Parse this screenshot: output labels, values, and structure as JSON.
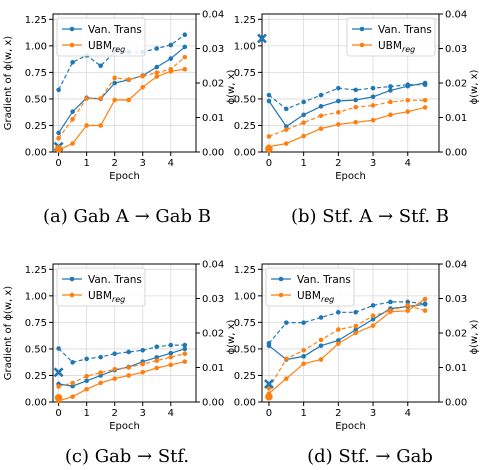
{
  "figure": {
    "captions": [
      "(a) Gab A → Gab B",
      "(b) Stf. A → Stf. B",
      "(c) Gab → Stf.",
      "(d) Stf. → Gab"
    ]
  },
  "colors": {
    "blue": "#1f77b4",
    "orange": "#ff7f0e"
  },
  "chart_data": [
    {
      "type": "line",
      "caption": "(a) Gab A → Gab B",
      "xlabel": "Epoch",
      "ylabel": "Gradient of ϕ(w, x)",
      "ylabel_right": "ϕ(w, x)",
      "xlim": [
        -0.2,
        4.9
      ],
      "ylim": [
        0,
        1.3
      ],
      "ylim_right": [
        0,
        0.04
      ],
      "xticks": [
        "0",
        "1",
        "2",
        "3",
        "4"
      ],
      "yticks": [
        "0.00",
        "0.25",
        "0.50",
        "0.75",
        "1.00",
        "1.25"
      ],
      "yticks_right": [
        "0.00",
        "0.01",
        "0.02",
        "0.03",
        "0.04"
      ],
      "legend": {
        "position": "top-left",
        "entries": [
          "Van. Trans",
          "UBM_reg"
        ]
      },
      "x": [
        0,
        0.5,
        1,
        1.5,
        2,
        2.5,
        3,
        3.5,
        4,
        4.5
      ],
      "series": [
        {
          "name": "Van. Trans",
          "axis": "left",
          "style": "solid",
          "color": "blue",
          "values": [
            0.18,
            0.38,
            0.51,
            0.5,
            0.65,
            0.68,
            0.72,
            0.8,
            0.88,
            0.99
          ]
        },
        {
          "name": "Van. Trans",
          "axis": "right",
          "style": "dashed",
          "color": "blue",
          "values": [
            0.018,
            0.026,
            0.028,
            0.025,
            0.029,
            0.029,
            0.029,
            0.03,
            0.031,
            0.034
          ]
        },
        {
          "name": "UBM_reg",
          "axis": "left",
          "style": "solid",
          "color": "orange",
          "values": [
            0.02,
            0.08,
            0.25,
            0.25,
            0.49,
            0.49,
            0.61,
            0.71,
            0.76,
            0.78
          ]
        },
        {
          "name": "UBM_reg",
          "axis": "right",
          "style": "dashed",
          "color": "orange",
          "values": [
            0.004,
            0.0095,
            0.0155,
            0.0155,
            0.0215,
            0.021,
            0.022,
            0.023,
            0.024,
            0.0275
          ]
        }
      ],
      "markers": [
        {
          "x": 0,
          "y": 0.05,
          "shape": "x",
          "color": "blue",
          "axis": "left"
        },
        {
          "x": 0,
          "y": 0.03,
          "shape": "dot",
          "color": "orange",
          "axis": "left"
        }
      ]
    },
    {
      "type": "line",
      "caption": "(b) Stf. A → Stf. B",
      "xlabel": "Epoch",
      "ylabel": "",
      "ylabel_right": "ϕ(w, x)",
      "xlim": [
        -0.2,
        4.9
      ],
      "ylim": [
        0,
        1.3
      ],
      "ylim_right": [
        0,
        0.04
      ],
      "xticks": [
        "0",
        "1",
        "2",
        "3",
        "4"
      ],
      "yticks": [
        "0.00",
        "0.25",
        "0.50",
        "0.75",
        "1.00",
        "1.25"
      ],
      "yticks_right": [
        "0.00",
        "0.01",
        "0.02",
        "0.03",
        "0.04"
      ],
      "legend": {
        "position": "top-right",
        "entries": [
          "Van. Trans",
          "UBM_reg"
        ]
      },
      "x": [
        0,
        0.5,
        1,
        1.5,
        2,
        2.5,
        3,
        3.5,
        4,
        4.5
      ],
      "series": [
        {
          "name": "Van. Trans",
          "axis": "left",
          "style": "solid",
          "color": "blue",
          "values": [
            0.48,
            0.24,
            0.35,
            0.43,
            0.48,
            0.49,
            0.52,
            0.58,
            0.62,
            0.65
          ]
        },
        {
          "name": "Van. Trans",
          "axis": "right",
          "style": "dashed",
          "color": "blue",
          "values": [
            0.0165,
            0.0125,
            0.0145,
            0.0165,
            0.0185,
            0.018,
            0.0185,
            0.019,
            0.0195,
            0.0195
          ]
        },
        {
          "name": "UBM_reg",
          "axis": "left",
          "style": "solid",
          "color": "orange",
          "values": [
            0.05,
            0.08,
            0.15,
            0.22,
            0.26,
            0.28,
            0.3,
            0.35,
            0.38,
            0.42
          ]
        },
        {
          "name": "UBM_reg",
          "axis": "right",
          "style": "dashed",
          "color": "orange",
          "values": [
            0.0045,
            0.0065,
            0.0085,
            0.0105,
            0.0115,
            0.013,
            0.0135,
            0.0145,
            0.015,
            0.015
          ]
        }
      ],
      "markers": [
        {
          "x": -0.2,
          "y": 1.07,
          "shape": "x",
          "color": "blue",
          "axis": "left"
        },
        {
          "x": 0,
          "y": 0.03,
          "shape": "dot",
          "color": "orange",
          "axis": "left"
        }
      ]
    },
    {
      "type": "line",
      "caption": "(c) Gab → Stf.",
      "xlabel": "Epoch",
      "ylabel": "Gradient of ϕ(w, x)",
      "ylabel_right": "ϕ(w, x)",
      "xlim": [
        -0.2,
        4.9
      ],
      "ylim": [
        0,
        1.3
      ],
      "ylim_right": [
        0,
        0.04
      ],
      "xticks": [
        "0",
        "1",
        "2",
        "3",
        "4"
      ],
      "yticks": [
        "0.00",
        "0.25",
        "0.50",
        "0.75",
        "1.00",
        "1.25"
      ],
      "yticks_right": [
        "0.00",
        "0.01",
        "0.02",
        "0.03",
        "0.04"
      ],
      "legend": {
        "position": "top-left",
        "entries": [
          "Van. Trans",
          "UBM_reg"
        ]
      },
      "x": [
        0,
        0.5,
        1,
        1.5,
        2,
        2.5,
        3,
        3.5,
        4,
        4.5
      ],
      "series": [
        {
          "name": "Van. Trans",
          "axis": "left",
          "style": "solid",
          "color": "blue",
          "values": [
            0.17,
            0.15,
            0.2,
            0.25,
            0.3,
            0.33,
            0.38,
            0.42,
            0.46,
            0.5
          ]
        },
        {
          "name": "Van. Trans",
          "axis": "right",
          "style": "dashed",
          "color": "blue",
          "values": [
            0.0155,
            0.0115,
            0.0125,
            0.013,
            0.014,
            0.0145,
            0.015,
            0.016,
            0.0165,
            0.0165
          ]
        },
        {
          "name": "UBM_reg",
          "axis": "left",
          "style": "solid",
          "color": "orange",
          "values": [
            0.01,
            0.05,
            0.12,
            0.18,
            0.22,
            0.25,
            0.28,
            0.32,
            0.35,
            0.38
          ]
        },
        {
          "name": "UBM_reg",
          "axis": "right",
          "style": "dashed",
          "color": "orange",
          "values": [
            0.0045,
            0.0055,
            0.0075,
            0.0085,
            0.0095,
            0.01,
            0.011,
            0.012,
            0.013,
            0.014
          ]
        }
      ],
      "markers": [
        {
          "x": 0,
          "y": 0.28,
          "shape": "x",
          "color": "blue",
          "axis": "left"
        },
        {
          "x": 0,
          "y": 0.04,
          "shape": "dot",
          "color": "orange",
          "axis": "left"
        }
      ]
    },
    {
      "type": "line",
      "caption": "(d) Stf. → Gab",
      "xlabel": "Epoch",
      "ylabel": "",
      "ylabel_right": "ϕ(w, x)",
      "xlim": [
        -0.2,
        4.9
      ],
      "ylim": [
        0,
        1.3
      ],
      "ylim_right": [
        0,
        0.04
      ],
      "xticks": [
        "0",
        "1",
        "2",
        "3",
        "4"
      ],
      "yticks": [
        "0.00",
        "0.25",
        "0.50",
        "0.75",
        "1.00",
        "1.25"
      ],
      "yticks_right": [
        "0.00",
        "0.01",
        "0.02",
        "0.03",
        "0.04"
      ],
      "legend": {
        "position": "top-left",
        "entries": [
          "Van. Trans",
          "UBM_reg"
        ]
      },
      "x": [
        0,
        0.5,
        1,
        1.5,
        2,
        2.5,
        3,
        3.5,
        4,
        4.5
      ],
      "series": [
        {
          "name": "Van. Trans",
          "axis": "left",
          "style": "solid",
          "color": "blue",
          "values": [
            0.53,
            0.4,
            0.43,
            0.53,
            0.58,
            0.68,
            0.78,
            0.88,
            0.9,
            0.92
          ]
        },
        {
          "name": "Van. Trans",
          "axis": "right",
          "style": "dashed",
          "color": "blue",
          "values": [
            0.017,
            0.023,
            0.023,
            0.0245,
            0.026,
            0.026,
            0.028,
            0.029,
            0.029,
            0.0285
          ]
        },
        {
          "name": "UBM_reg",
          "axis": "left",
          "style": "solid",
          "color": "orange",
          "values": [
            0.08,
            0.22,
            0.36,
            0.4,
            0.55,
            0.65,
            0.72,
            0.85,
            0.86,
            0.97
          ]
        },
        {
          "name": "UBM_reg",
          "axis": "right",
          "style": "dashed",
          "color": "orange",
          "values": [
            0.004,
            0.0125,
            0.015,
            0.018,
            0.021,
            0.022,
            0.025,
            0.0265,
            0.028,
            0.0265
          ]
        }
      ],
      "markers": [
        {
          "x": 0,
          "y": 0.17,
          "shape": "x",
          "color": "blue",
          "axis": "left"
        },
        {
          "x": 0,
          "y": 0.05,
          "shape": "dot",
          "color": "orange",
          "axis": "left"
        }
      ]
    }
  ]
}
